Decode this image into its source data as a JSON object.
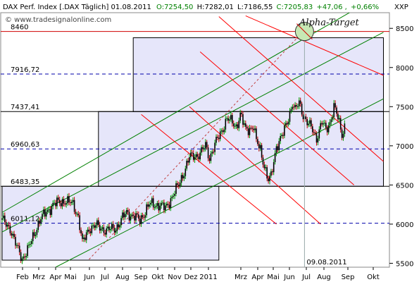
{
  "header": {
    "instrument": "DAX Perf. Index [.DAX  Täglich] 01.08.2011",
    "open": "O:7254,50",
    "high": "H:7282,01",
    "low": "L:7186,55",
    "close": "C:7205,83",
    "change": "+47,06",
    "change_pct": "+0,66%",
    "watermark": "© www.tradesignalonline.com",
    "xxp": "XXP"
  },
  "annotations": {
    "target_label": "Alpha-Target",
    "date_marker": "09.08.2011"
  },
  "colors": {
    "up": "#00a000",
    "down": "#c00000",
    "candle_body": "#000000",
    "box_fill": "#e6e6fa",
    "channel": "#008000",
    "fan": "#ff0000",
    "dashed_level": "#0000aa",
    "target_circle": "#c7e8b4"
  },
  "chart_data": {
    "type": "candlestick",
    "title": "DAX Perf. Index [.DAX  Täglich] 01.08.2011",
    "ylim": [
      5450,
      8700
    ],
    "y_ticks": [
      5500,
      6000,
      6500,
      7000,
      7500,
      8000,
      8500
    ],
    "y_tick_labels": [
      "5500",
      "6000",
      "6500",
      "7000",
      "7500",
      "8000",
      "8500"
    ],
    "x_labels": [
      "Feb",
      "Mrz",
      "Apr",
      "Mai",
      "Jun",
      "Jul",
      "Aug",
      "Sep",
      "Okt",
      "Nov",
      "Dez",
      "2011",
      "Mrz",
      "Apr",
      "Mai",
      "Jun",
      "Jul",
      "Aug",
      "Sep",
      "Okt"
    ],
    "price_path": [
      [
        0,
        6050
      ],
      [
        6,
        5950
      ],
      [
        11,
        5700
      ],
      [
        15,
        5560
      ],
      [
        20,
        5700
      ],
      [
        28,
        6050
      ],
      [
        38,
        6250
      ],
      [
        47,
        6300
      ],
      [
        53,
        6250
      ],
      [
        57,
        6100
      ],
      [
        60,
        5750
      ],
      [
        65,
        5950
      ],
      [
        70,
        5980
      ],
      [
        78,
        5920
      ],
      [
        85,
        5950
      ],
      [
        93,
        6150
      ],
      [
        98,
        6100
      ],
      [
        103,
        6050
      ],
      [
        110,
        6250
      ],
      [
        117,
        6250
      ],
      [
        122,
        6200
      ],
      [
        127,
        6350
      ],
      [
        132,
        6500
      ],
      [
        140,
        6850
      ],
      [
        148,
        6900
      ],
      [
        152,
        7000
      ],
      [
        155,
        6850
      ],
      [
        160,
        7050
      ],
      [
        163,
        7150
      ],
      [
        168,
        7350
      ],
      [
        175,
        7250
      ],
      [
        178,
        7400
      ],
      [
        182,
        7200
      ],
      [
        188,
        7250
      ],
      [
        190,
        7050
      ],
      [
        193,
        6950
      ],
      [
        196,
        6750
      ],
      [
        199,
        6550
      ],
      [
        201,
        6600
      ],
      [
        205,
        7000
      ],
      [
        210,
        7150
      ],
      [
        213,
        7300
      ],
      [
        217,
        7550
      ],
      [
        219,
        7450
      ],
      [
        222,
        7550
      ],
      [
        225,
        7400
      ],
      [
        228,
        7300
      ],
      [
        232,
        7200
      ],
      [
        235,
        7100
      ],
      [
        239,
        7300
      ],
      [
        242,
        7200
      ],
      [
        245,
        7300
      ],
      [
        248,
        7500
      ],
      [
        251,
        7350
      ],
      [
        254,
        7150
      ],
      [
        256,
        7250
      ]
    ],
    "levels": [
      {
        "value": 8460,
        "label": "8460",
        "style": "solid-red"
      },
      {
        "value": 7916.72,
        "label": "7916,72",
        "style": "dashed"
      },
      {
        "value": 7437.41,
        "label": "7437,41",
        "style": "solid"
      },
      {
        "value": 6960.63,
        "label": "6960,63",
        "style": "dashed"
      },
      {
        "value": 6483.35,
        "label": "6483,35",
        "style": "solid"
      },
      {
        "value": 6011.12,
        "label": "6011,12",
        "style": "dashed"
      }
    ],
    "boxes": [
      {
        "i0": 0,
        "i1": 162,
        "top": 6483.35,
        "bottom": 5540
      },
      {
        "i0": 72,
        "i1": 285,
        "top": 7437.41,
        "bottom": 6483.35
      },
      {
        "i0": 98,
        "i1": 285,
        "top": 8380,
        "bottom": 7437.41
      }
    ],
    "channel_lines": [
      {
        "i0": 0,
        "v0": 6150,
        "i1": 285,
        "v1": 8950
      },
      {
        "i0": 0,
        "v0": 5900,
        "i1": 285,
        "v1": 8450
      },
      {
        "i0": 40,
        "v0": 5450,
        "i1": 285,
        "v1": 7600
      }
    ],
    "fan_lines": [
      {
        "i0": 104,
        "v0": 7400,
        "i1": 205,
        "v1": 6000
      },
      {
        "i0": 140,
        "v0": 7500,
        "i1": 238,
        "v1": 6000
      },
      {
        "i0": 148,
        "v0": 8200,
        "i1": 263,
        "v1": 6500
      },
      {
        "i0": 162,
        "v0": 8650,
        "i1": 285,
        "v1": 6800
      },
      {
        "i0": 182,
        "v0": 8660,
        "i1": 285,
        "v1": 7900
      }
    ],
    "trend_dashed": {
      "i0": 65,
      "v0": 5550,
      "i1": 225,
      "v1": 8460
    },
    "target": {
      "index": 226,
      "value": 8460
    },
    "date_marker_index": 226
  }
}
